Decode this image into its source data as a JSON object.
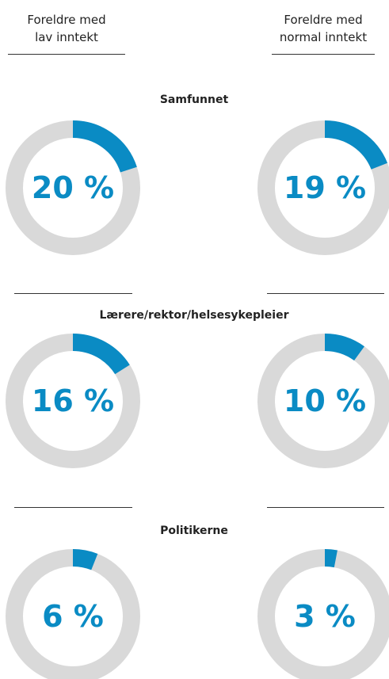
{
  "columns": [
    "Foreldre med lav inntekt",
    "Foreldre med normal inntekt"
  ],
  "chart_data": [
    {
      "type": "donut",
      "title": "Samfunnet",
      "values": [
        20,
        19
      ],
      "value_labels": [
        "20 %",
        "19 %"
      ],
      "color": "#0a8bc4",
      "track_color": "#d9d9d9"
    },
    {
      "type": "donut",
      "title": "Lærere/rektor/helsesykepleier",
      "values": [
        16,
        10
      ],
      "value_labels": [
        "16 %",
        "10 %"
      ],
      "color": "#0a8bc4",
      "track_color": "#d9d9d9"
    },
    {
      "type": "donut",
      "title": "Politikerne",
      "values": [
        6,
        3
      ],
      "value_labels": [
        "6 %",
        "3 %"
      ],
      "color": "#0a8bc4",
      "track_color": "#d9d9d9"
    }
  ]
}
